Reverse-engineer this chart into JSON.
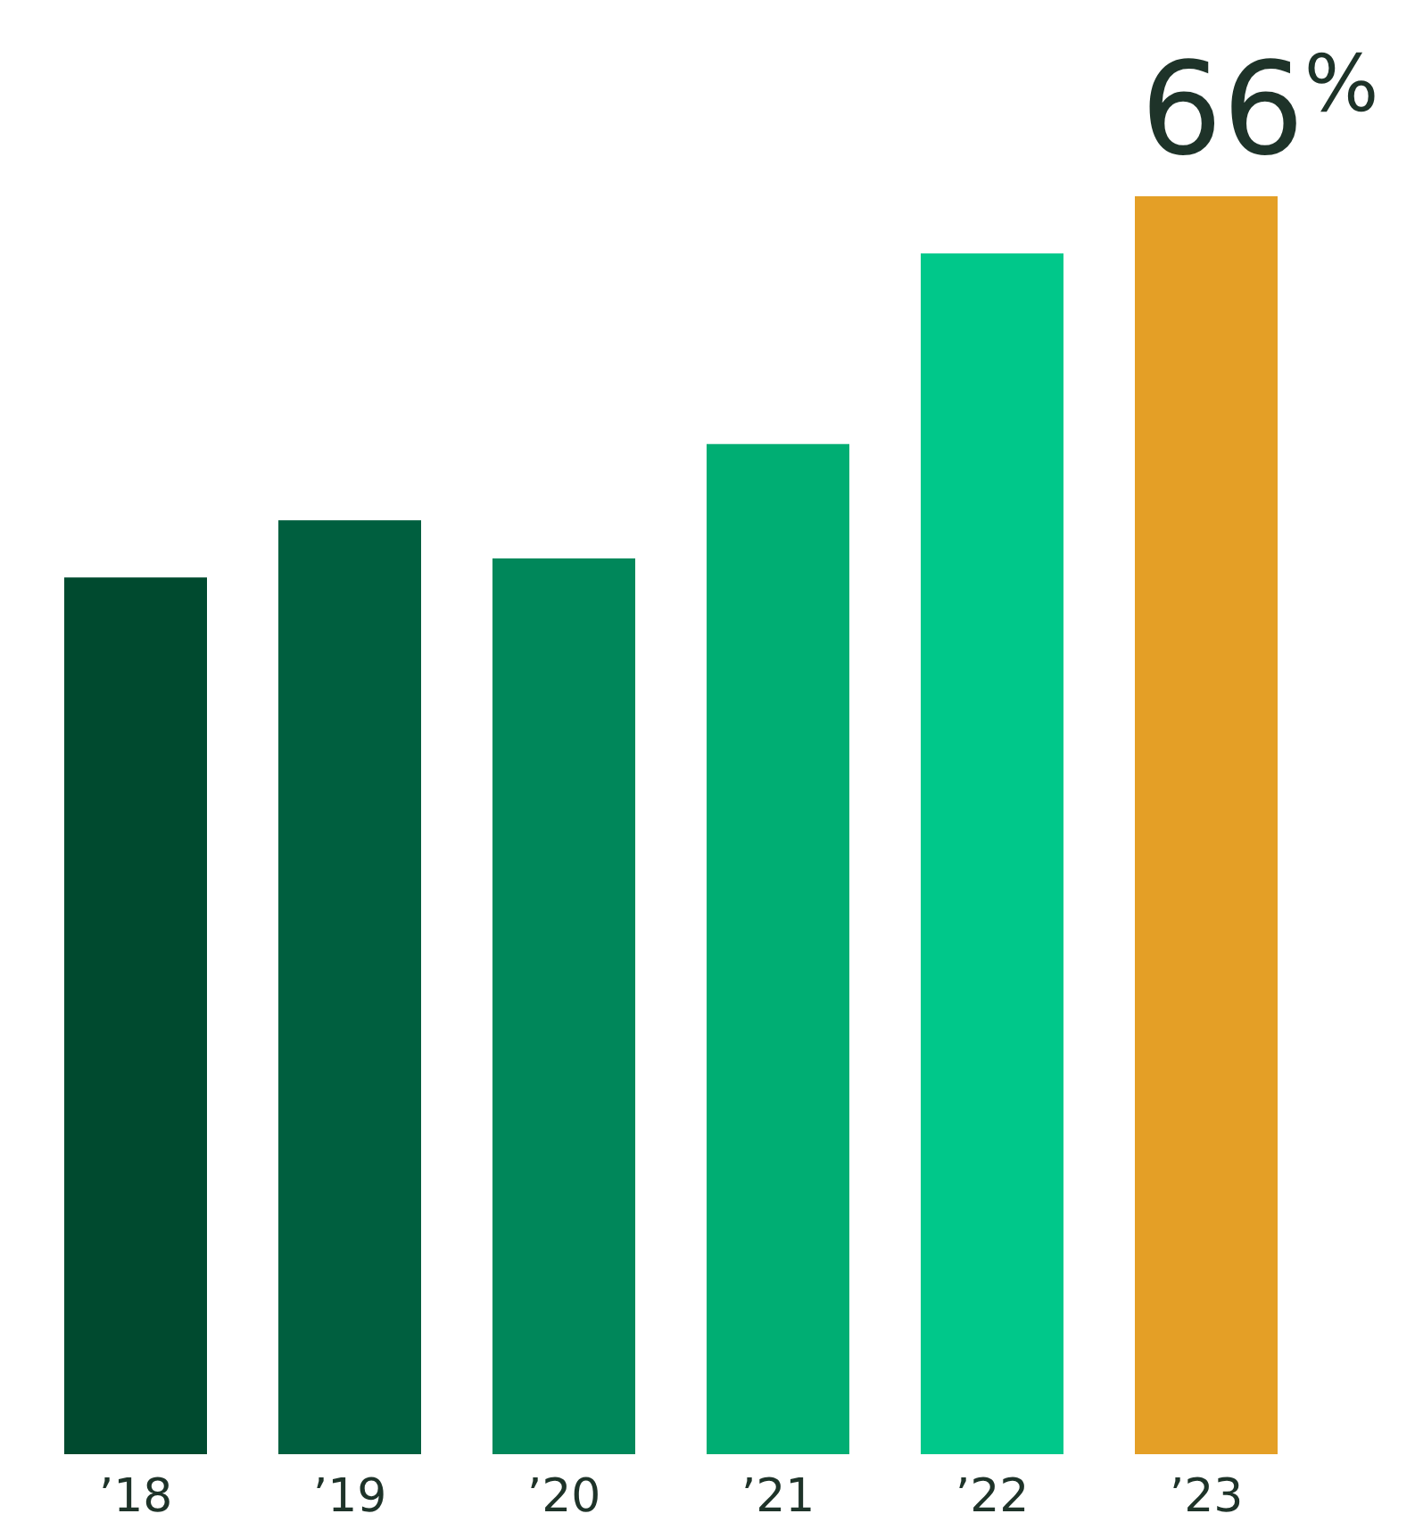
{
  "chart_data": {
    "type": "bar",
    "categories": [
      "’18",
      "’19",
      "’20",
      "’21",
      "’22",
      "’23"
    ],
    "values": [
      46,
      49,
      47,
      53,
      63,
      66
    ],
    "colors": [
      "#004a2f",
      "#005f3f",
      "#00875a",
      "#00ae73",
      "#00c88a",
      "#e49f26"
    ],
    "value_labels": [
      null,
      null,
      null,
      null,
      null,
      "66$^{%}$"
    ]
  }
}
